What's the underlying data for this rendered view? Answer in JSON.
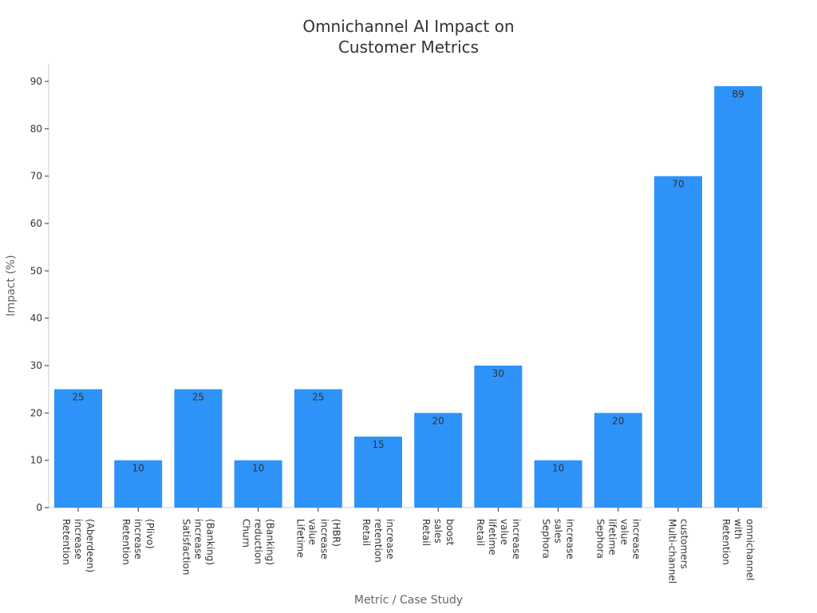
{
  "chart_data": {
    "type": "bar",
    "title": [
      "Omnichannel AI Impact on",
      "Customer Metrics"
    ],
    "xlabel": "Metric / Case Study",
    "ylabel": "Impact (%)",
    "ylim": [
      0,
      90
    ],
    "yticks": [
      0,
      10,
      20,
      30,
      40,
      50,
      60,
      70,
      80,
      90
    ],
    "grid": false,
    "bar_color": "#2e93f8",
    "categories": [
      [
        "Retention",
        "increase",
        "(Aberdeen)"
      ],
      [
        "Retention",
        "increase",
        "(Plivo)"
      ],
      [
        "Satisfaction",
        "increase",
        "(Banking)"
      ],
      [
        "Churn",
        "reduction",
        "(Banking)"
      ],
      [
        "Lifetime",
        "value",
        "increase",
        "(HBR)"
      ],
      [
        "Retail",
        "retention",
        "increase"
      ],
      [
        "Retail",
        "sales",
        "boost"
      ],
      [
        "Retail",
        "lifetime",
        "value",
        "increase"
      ],
      [
        "Sephora",
        "sales",
        "increase"
      ],
      [
        "Sephora",
        "lifetime",
        "value",
        "increase"
      ],
      [
        "Multi-channel",
        "customers"
      ],
      [
        "Retention",
        "with",
        "omnichannel"
      ]
    ],
    "values": [
      25,
      10,
      25,
      10,
      25,
      15,
      20,
      30,
      10,
      20,
      70,
      89
    ]
  }
}
